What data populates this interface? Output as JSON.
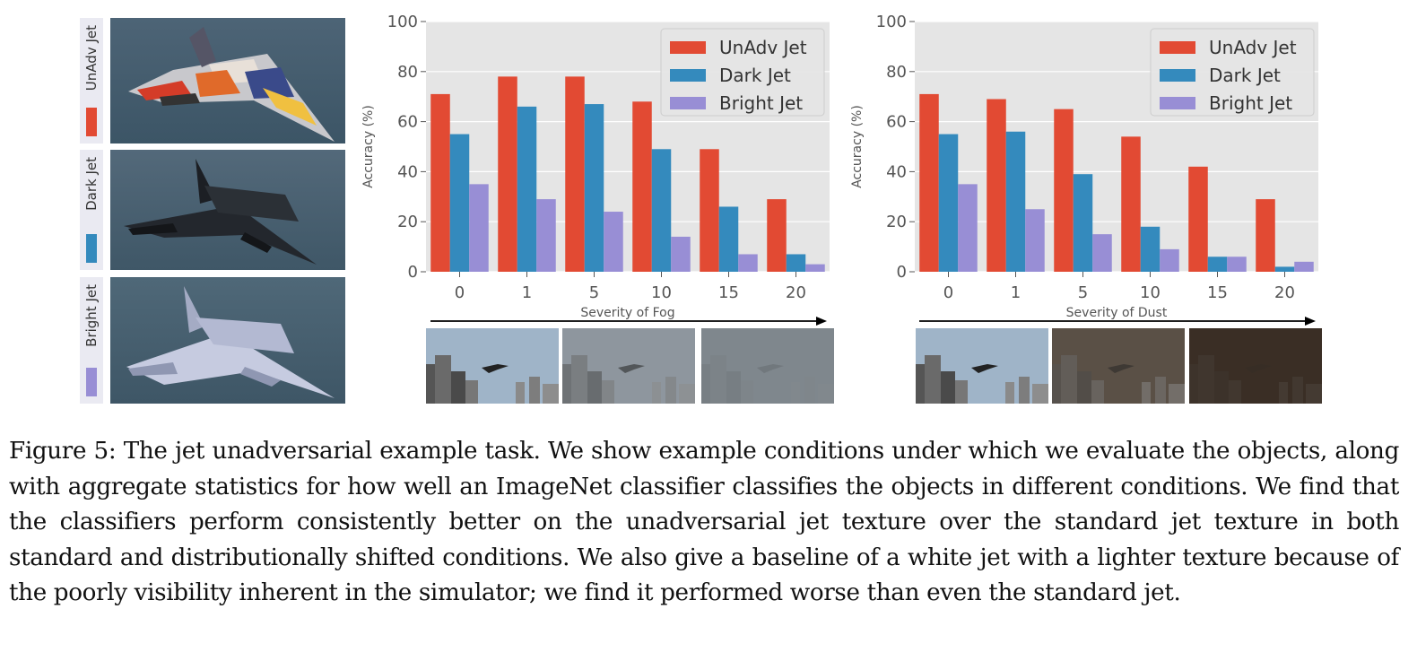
{
  "jets": [
    {
      "label": "UnAdv Jet",
      "color": "#e24a33",
      "photo": "colorful-jet-photo"
    },
    {
      "label": "Dark Jet",
      "color": "#348abd",
      "photo": "dark-jet-photo"
    },
    {
      "label": "Bright Jet",
      "color": "#988ed5",
      "photo": "bright-jet-photo"
    }
  ],
  "chart_data": [
    {
      "type": "bar",
      "xlabel": "Severity of Fog",
      "ylabel": "Accuracy (%)",
      "ylim": [
        0,
        100
      ],
      "yticks": [
        "0",
        "20",
        "40",
        "60",
        "80",
        "100"
      ],
      "categories": [
        "0",
        "1",
        "5",
        "10",
        "15",
        "20"
      ],
      "grid": true,
      "legend": "top-right",
      "series": [
        {
          "name": "UnAdv Jet",
          "color": "#e24a33",
          "values": [
            71,
            78,
            78,
            68,
            49,
            29
          ]
        },
        {
          "name": "Dark Jet",
          "color": "#348abd",
          "values": [
            55,
            66,
            67,
            49,
            26,
            7
          ]
        },
        {
          "name": "Bright Jet",
          "color": "#988ed5",
          "values": [
            35,
            29,
            24,
            14,
            7,
            3
          ]
        }
      ]
    },
    {
      "type": "bar",
      "xlabel": "Severity of Dust",
      "ylabel": "Accuracy (%)",
      "ylim": [
        0,
        100
      ],
      "yticks": [
        "0",
        "20",
        "40",
        "60",
        "80",
        "100"
      ],
      "categories": [
        "0",
        "1",
        "5",
        "10",
        "15",
        "20"
      ],
      "grid": true,
      "legend": "top-right",
      "series": [
        {
          "name": "UnAdv Jet",
          "color": "#e24a33",
          "values": [
            71,
            69,
            65,
            54,
            42,
            29
          ]
        },
        {
          "name": "Dark Jet",
          "color": "#348abd",
          "values": [
            55,
            56,
            39,
            18,
            6,
            2
          ]
        },
        {
          "name": "Bright Jet",
          "color": "#988ed5",
          "values": [
            35,
            25,
            15,
            9,
            6,
            4
          ]
        }
      ]
    }
  ],
  "thumbnails": {
    "fog": [
      {
        "name": "clear-sky-thumbnail",
        "sky": "#9fb4c8",
        "haze": 0.0
      },
      {
        "name": "moderate-fog-thumbnail",
        "sky": "#8f969e",
        "haze": 0.45
      },
      {
        "name": "heavy-fog-thumbnail",
        "sky": "#7f878d",
        "haze": 0.85
      }
    ],
    "dust": [
      {
        "name": "clear-sky-thumbnail",
        "sky": "#9fb4c8",
        "haze": 0.0
      },
      {
        "name": "moderate-dust-thumbnail",
        "sky": "#5a5046",
        "haze": 0.5
      },
      {
        "name": "heavy-dust-thumbnail",
        "sky": "#3a2f26",
        "haze": 0.88
      }
    ]
  },
  "caption": "Figure 5: The jet unadversarial example task. We show example conditions under which we evaluate the objects, along with aggregate statistics for how well an ImageNet classifier classifies the objects in different conditions. We find that the classifiers perform consistently better on the unadversarial jet texture over the standard jet texture in both standard and distributionally shifted conditions. We also give a baseline of a white jet with a lighter texture because of the poorly visibility inherent in the simulator; we find it performed worse than even the standard jet."
}
